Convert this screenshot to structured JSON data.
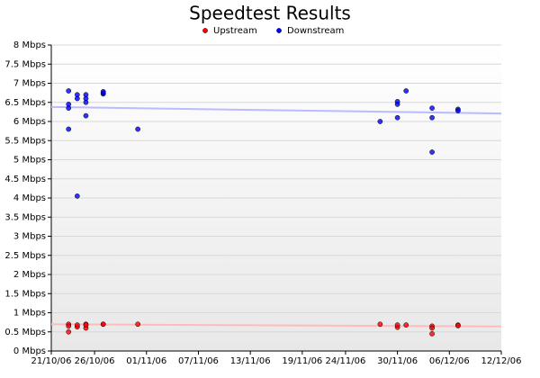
{
  "chart_data": {
    "type": "scatter",
    "title": "Speedtest Results",
    "xlim": [
      "2006-10-21",
      "2006-12-12"
    ],
    "xticks": [
      {
        "value": "2006-10-21",
        "label": "21/10/06"
      },
      {
        "value": "2006-10-26",
        "label": "26/10/06"
      },
      {
        "value": "2006-11-01",
        "label": "01/11/06"
      },
      {
        "value": "2006-11-07",
        "label": "07/11/06"
      },
      {
        "value": "2006-11-13",
        "label": "13/11/06"
      },
      {
        "value": "2006-11-19",
        "label": "19/11/06"
      },
      {
        "value": "2006-11-24",
        "label": "24/11/06"
      },
      {
        "value": "2006-11-30",
        "label": "30/11/06"
      },
      {
        "value": "2006-12-06",
        "label": "06/12/06"
      },
      {
        "value": "2006-12-12",
        "label": "12/12/06"
      }
    ],
    "ylim": [
      0,
      8
    ],
    "yticks": [
      {
        "value": 0,
        "label": "0 Mbps"
      },
      {
        "value": 0.5,
        "label": "0.5 Mbps"
      },
      {
        "value": 1,
        "label": "1 Mbps"
      },
      {
        "value": 1.5,
        "label": "1.5 Mbps"
      },
      {
        "value": 2,
        "label": "2 Mbps"
      },
      {
        "value": 2.5,
        "label": "2.5 Mbps"
      },
      {
        "value": 3,
        "label": "3 Mbps"
      },
      {
        "value": 3.5,
        "label": "3.5 Mbps"
      },
      {
        "value": 4,
        "label": "4 Mbps"
      },
      {
        "value": 4.5,
        "label": "4.5 Mbps"
      },
      {
        "value": 5,
        "label": "5 Mbps"
      },
      {
        "value": 5.5,
        "label": "5.5 Mbps"
      },
      {
        "value": 6,
        "label": "6 Mbps"
      },
      {
        "value": 6.5,
        "label": "6.5 Mbps"
      },
      {
        "value": 7,
        "label": "7 Mbps"
      },
      {
        "value": 7.5,
        "label": "7.5 Mbps"
      },
      {
        "value": 8,
        "label": "8 Mbps"
      }
    ],
    "grid": true,
    "series": [
      {
        "name": "Upstream",
        "color": "#ff0000",
        "trend_color": "#ffbbbb",
        "x": [
          "2006-10-23",
          "2006-10-23",
          "2006-10-23",
          "2006-10-24",
          "2006-10-24",
          "2006-10-25",
          "2006-10-25",
          "2006-10-25",
          "2006-10-27",
          "2006-10-27",
          "2006-10-31",
          "2006-11-28",
          "2006-11-30",
          "2006-11-30",
          "2006-12-01",
          "2006-12-04",
          "2006-12-04",
          "2006-12-04",
          "2006-12-07",
          "2006-12-07"
        ],
        "values": [
          0.5,
          0.7,
          0.65,
          0.63,
          0.68,
          0.7,
          0.6,
          0.68,
          0.7,
          0.7,
          0.7,
          0.7,
          0.62,
          0.68,
          0.68,
          0.65,
          0.6,
          0.45,
          0.68,
          0.66
        ],
        "trend": [
          0.7,
          0.64
        ]
      },
      {
        "name": "Downstream",
        "color": "#0000ff",
        "trend_color": "#bbbbff",
        "x": [
          "2006-10-23",
          "2006-10-23",
          "2006-10-23",
          "2006-10-23",
          "2006-10-24",
          "2006-10-24",
          "2006-10-24",
          "2006-10-25",
          "2006-10-25",
          "2006-10-25",
          "2006-10-25",
          "2006-10-27",
          "2006-10-27",
          "2006-10-27",
          "2006-10-31",
          "2006-11-28",
          "2006-11-30",
          "2006-11-30",
          "2006-11-30",
          "2006-12-01",
          "2006-12-04",
          "2006-12-04",
          "2006-12-04",
          "2006-12-07",
          "2006-12-07"
        ],
        "values": [
          5.8,
          6.8,
          6.45,
          6.35,
          6.6,
          4.05,
          6.7,
          6.7,
          6.6,
          6.5,
          6.15,
          6.72,
          6.75,
          6.78,
          5.8,
          6.0,
          6.52,
          6.45,
          6.1,
          6.8,
          6.35,
          6.1,
          5.2,
          6.32,
          6.28
        ],
        "trend": [
          6.38,
          6.21
        ]
      }
    ]
  }
}
